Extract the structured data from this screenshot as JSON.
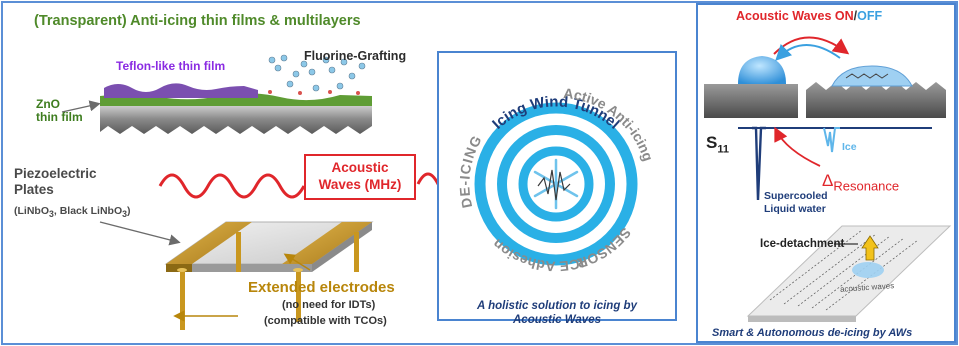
{
  "colors": {
    "outer_border": "#5b8fd6",
    "title_green": "#4f8a2a",
    "teflon_purple": "#8a2be2",
    "zno_green": "#3e7d1f",
    "acoustic_red": "#e0262b",
    "off_blue": "#3aa0e0",
    "gold_label": "#b8860b",
    "caption_navy": "#1f3d7a",
    "ring_blue": "#2ab0e6",
    "panel_border": "#4a84d0",
    "arc_text_gray": "#8a8a8a"
  },
  "left": {
    "title": "(Transparent) Anti-icing thin films & multilayers",
    "teflon_label": "Teflon-like thin film",
    "fluorine_label": "Fluorine-Grafting",
    "zno_label_line1": "ZnO",
    "zno_label_line2": "thin film",
    "piezo_line1": "Piezoelectric",
    "piezo_line2": "Plates",
    "piezo_materials_a": "(LiNbO",
    "piezo_materials_sub1": "3",
    "piezo_materials_b": ", Black LiNbO",
    "piezo_materials_sub2": "3",
    "piezo_materials_c": ")",
    "electrodes_title": "Extended electrodes",
    "electrodes_line2": "(no need for IDTs)",
    "electrodes_line3": "(compatible with TCOs)"
  },
  "acoustic_box": {
    "line1": "Acoustic",
    "line2": "Waves (MHz)"
  },
  "center": {
    "arc_top": "Icing Wind Tunnel",
    "arc_left": "DE-ICING",
    "arc_right": "Active Anti-icing",
    "arc_bottom_left": "ICE Adhesion",
    "arc_bottom_right": "SENSOR",
    "caption_line1": "A holistic solution to icing by",
    "caption_line2": "Acoustic Waves"
  },
  "right": {
    "title_on": "Acoustic Waves ON",
    "title_sep": "/",
    "title_off": "OFF",
    "s11_main": "S",
    "s11_sub": "11",
    "ice_label": "Ice",
    "delta_symbol": "Δ",
    "delta_sub": "Resonance",
    "supercooled_line1": "Supercooled",
    "supercooled_line2": "Liquid water",
    "detachment_label": "Ice-detachment",
    "plate_text": "acoustic waves",
    "caption": "Smart & Autonomous de-icing by AWs"
  }
}
